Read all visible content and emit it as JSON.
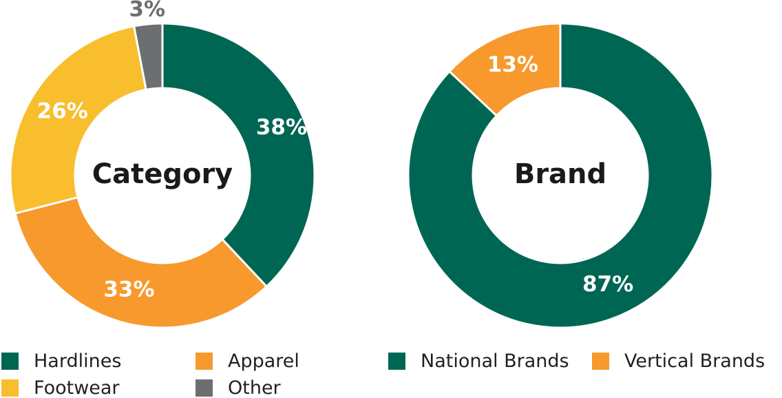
{
  "chart_data": [
    {
      "type": "pie",
      "title": "Category",
      "categories": [
        "Hardlines",
        "Apparel",
        "Footwear",
        "Other"
      ],
      "values": [
        38,
        33,
        26,
        3
      ],
      "labels": [
        "38%",
        "33%",
        "26%",
        "3%"
      ],
      "colors": [
        "#006654",
        "#F7992D",
        "#F8BE2E",
        "#6D6E70"
      ],
      "label_colors": [
        "#ffffff",
        "#ffffff",
        "#ffffff",
        "#6D6E70"
      ],
      "legend_placement": "bottom"
    },
    {
      "type": "pie",
      "title": "Brand",
      "categories": [
        "National Brands",
        "Vertical Brands"
      ],
      "values": [
        87,
        13
      ],
      "labels": [
        "87%",
        "13%"
      ],
      "colors": [
        "#006654",
        "#F7992D"
      ],
      "label_colors": [
        "#ffffff",
        "#ffffff"
      ],
      "legend_placement": "bottom"
    }
  ],
  "legend": {
    "category": [
      {
        "label": "Hardlines",
        "color": "#006654"
      },
      {
        "label": "Apparel",
        "color": "#F7992D"
      },
      {
        "label": "Footwear",
        "color": "#F8BE2E"
      },
      {
        "label": "Other",
        "color": "#6D6E70"
      }
    ],
    "brand": [
      {
        "label": "National Brands",
        "color": "#006654"
      },
      {
        "label": "Vertical Brands",
        "color": "#F7992D"
      }
    ]
  }
}
